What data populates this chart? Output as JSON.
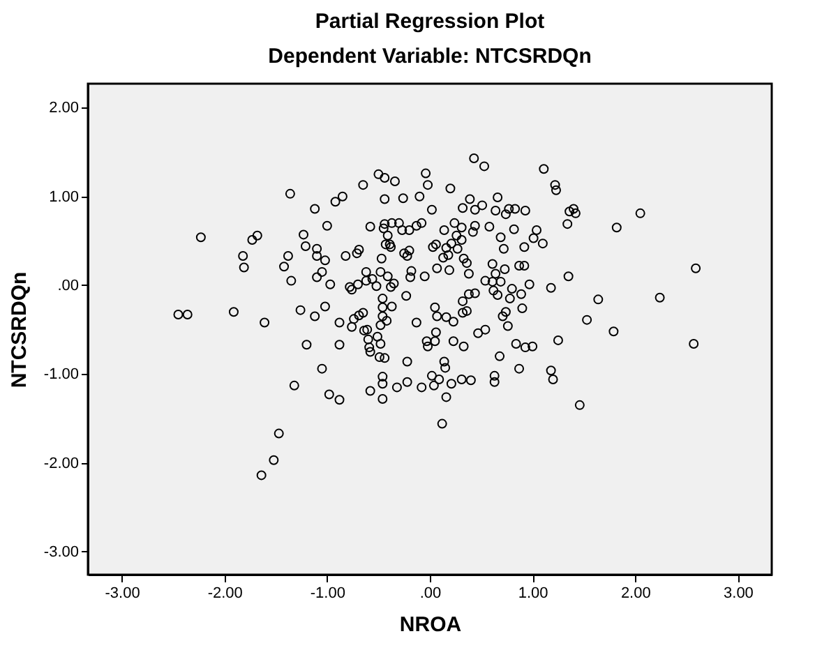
{
  "chart_data": {
    "type": "scatter",
    "title": "Partial Regression Plot",
    "subtitle": "Dependent Variable: NTCSRDQn",
    "xlabel": "NROA",
    "ylabel": "NTCSRDQn",
    "xlim": [
      -3.33,
      3.33
    ],
    "ylim": [
      -3.26,
      2.27
    ],
    "xticks": [
      {
        "value": -3,
        "label": "-3.00"
      },
      {
        "value": -2,
        "label": "-2.00"
      },
      {
        "value": -1,
        "label": "-1.00"
      },
      {
        "value": 0,
        "label": ".00"
      },
      {
        "value": 1,
        "label": "1.00"
      },
      {
        "value": 2,
        "label": "2.00"
      },
      {
        "value": 3,
        "label": "3.00"
      }
    ],
    "yticks": [
      {
        "value": -3,
        "label": "-3.00"
      },
      {
        "value": -2,
        "label": "-2.00"
      },
      {
        "value": -1,
        "label": "-1.00"
      },
      {
        "value": 0,
        "label": ".00"
      },
      {
        "value": 1,
        "label": "1.00"
      },
      {
        "value": 2,
        "label": "2.00"
      }
    ],
    "grid": false,
    "marker": "circle",
    "series": [
      {
        "color": "#000000",
        "x": [
          -2.45,
          -2.36,
          -2.23,
          -1.91,
          -1.82,
          -1.81,
          -1.73,
          -1.68,
          -1.61,
          -1.47,
          -1.52,
          -1.64,
          -1.42,
          -1.38,
          -1.36,
          -1.35,
          -1.32,
          -1.26,
          -1.23,
          -1.21,
          -1.2,
          -1.12,
          -1.12,
          -1.1,
          -1.1,
          -1.1,
          -1.05,
          -1.05,
          -1.02,
          -1.02,
          -1.0,
          -0.98,
          -0.97,
          -0.92,
          -0.88,
          -0.88,
          -0.88,
          -0.85,
          -0.82,
          -0.78,
          -0.76,
          -0.76,
          -0.74,
          -0.71,
          -0.7,
          -0.69,
          -0.69,
          -0.65,
          -0.65,
          -0.64,
          -0.62,
          -0.62,
          -0.61,
          -0.6,
          -0.59,
          -0.58,
          -0.58,
          -0.58,
          -0.56,
          -0.52,
          -0.51,
          -0.5,
          -0.49,
          -0.48,
          -0.48,
          -0.48,
          -0.47,
          -0.46,
          -0.46,
          -0.46,
          -0.46,
          -0.46,
          -0.46,
          -0.45,
          -0.44,
          -0.44,
          -0.44,
          -0.44,
          -0.42,
          -0.41,
          -0.41,
          -0.39,
          -0.43,
          -0.38,
          -0.38,
          -0.37,
          -0.37,
          -0.34,
          -0.35,
          -0.32,
          -0.3,
          -0.27,
          -0.26,
          -0.25,
          -0.23,
          -0.22,
          -0.22,
          -0.22,
          -0.2,
          -0.2,
          -0.19,
          -0.18,
          -0.13,
          -0.13,
          -0.1,
          -0.08,
          -0.08,
          -0.05,
          -0.04,
          -0.03,
          -0.02,
          -0.02,
          0.02,
          0.03,
          0.02,
          0.04,
          0.05,
          0.06,
          0.06,
          0.05,
          0.07,
          0.07,
          0.09,
          0.12,
          0.13,
          0.14,
          0.14,
          0.15,
          0.16,
          0.16,
          0.16,
          0.18,
          0.19,
          0.2,
          0.21,
          0.21,
          0.23,
          0.23,
          0.24,
          0.26,
          0.27,
          0.31,
          0.31,
          0.31,
          0.32,
          0.32,
          0.32,
          0.33,
          0.33,
          0.36,
          0.36,
          0.38,
          0.38,
          0.39,
          0.4,
          0.42,
          0.43,
          0.44,
          0.44,
          0.44,
          0.47,
          0.51,
          0.53,
          0.54,
          0.54,
          0.58,
          0.61,
          0.61,
          0.62,
          0.63,
          0.63,
          0.64,
          0.64,
          0.66,
          0.66,
          0.68,
          0.69,
          0.69,
          0.71,
          0.72,
          0.73,
          0.74,
          0.74,
          0.76,
          0.77,
          0.78,
          0.8,
          0.82,
          0.83,
          0.84,
          0.87,
          0.87,
          0.89,
          0.9,
          0.92,
          0.92,
          0.93,
          0.93,
          0.97,
          1.0,
          1.01,
          1.04,
          1.1,
          1.11,
          1.18,
          1.18,
          1.2,
          1.22,
          1.23,
          1.25,
          1.34,
          1.35,
          1.36,
          1.4,
          1.42,
          1.46,
          1.53,
          1.64,
          1.79,
          1.82,
          2.05,
          2.24,
          2.57,
          2.59
        ],
        "values": [
          -0.33,
          -0.33,
          0.54,
          -0.3,
          0.33,
          0.2,
          0.51,
          0.56,
          -0.42,
          -1.67,
          -1.97,
          -2.14,
          0.21,
          0.33,
          1.03,
          0.05,
          -1.13,
          -0.28,
          0.57,
          0.44,
          -0.67,
          0.86,
          -0.35,
          0.41,
          0.33,
          0.09,
          -0.94,
          0.15,
          0.28,
          -0.24,
          0.67,
          -1.23,
          0.01,
          0.94,
          -0.67,
          -0.42,
          -1.29,
          1.0,
          0.33,
          -0.02,
          -0.05,
          -0.47,
          -0.38,
          0.36,
          0.01,
          0.4,
          -0.34,
          -0.31,
          1.13,
          -0.51,
          0.05,
          0.15,
          -0.5,
          -0.61,
          -0.7,
          -0.75,
          -1.19,
          0.66,
          0.07,
          -0.01,
          -0.58,
          1.25,
          -0.81,
          -0.66,
          -0.45,
          0.15,
          0.3,
          -1.28,
          -1.03,
          -1.11,
          -0.25,
          -0.15,
          -0.35,
          0.64,
          0.69,
          0.97,
          1.21,
          -0.82,
          -0.4,
          0.1,
          0.56,
          0.46,
          0.46,
          0.43,
          -0.02,
          0.7,
          -0.24,
          1.17,
          0.02,
          -1.15,
          0.7,
          0.62,
          0.98,
          0.36,
          -0.12,
          -0.86,
          -1.09,
          0.33,
          0.39,
          0.62,
          0.09,
          0.16,
          0.67,
          -0.42,
          1.0,
          0.7,
          -1.15,
          0.1,
          1.26,
          -0.63,
          1.13,
          -0.69,
          0.85,
          0.43,
          -1.02,
          -1.13,
          -0.25,
          0.46,
          -0.53,
          -0.63,
          0.19,
          -0.35,
          -1.06,
          -1.56,
          0.31,
          0.62,
          -0.86,
          -0.93,
          -1.26,
          0.42,
          -0.36,
          0.34,
          0.17,
          1.09,
          -1.11,
          0.47,
          -0.41,
          -0.63,
          0.7,
          0.56,
          0.41,
          -1.06,
          0.51,
          0.65,
          0.87,
          -0.31,
          -0.18,
          0.3,
          -0.69,
          -0.29,
          0.25,
          0.13,
          -0.1,
          0.97,
          -1.07,
          0.6,
          1.43,
          0.67,
          0.85,
          -0.09,
          -0.54,
          0.9,
          1.34,
          -0.5,
          0.05,
          0.66,
          0.24,
          0.04,
          -0.06,
          -1.02,
          -1.09,
          0.84,
          0.13,
          -0.11,
          0.99,
          -0.8,
          0.04,
          0.54,
          -0.35,
          0.41,
          0.18,
          -0.3,
          0.8,
          -0.46,
          0.86,
          -0.15,
          -0.04,
          0.63,
          0.86,
          -0.66,
          -0.94,
          0.22,
          -0.1,
          -0.26,
          0.43,
          0.22,
          0.84,
          -0.7,
          0.01,
          -0.69,
          0.53,
          0.62,
          0.47,
          1.31,
          -0.03,
          -0.96,
          -1.06,
          1.13,
          1.07,
          -0.62,
          0.69,
          0.1,
          0.83,
          0.86,
          0.81,
          -1.35,
          -0.39,
          -0.16,
          -0.52,
          0.65,
          0.81,
          -0.14,
          -0.66,
          0.19
        ]
      }
    ]
  }
}
